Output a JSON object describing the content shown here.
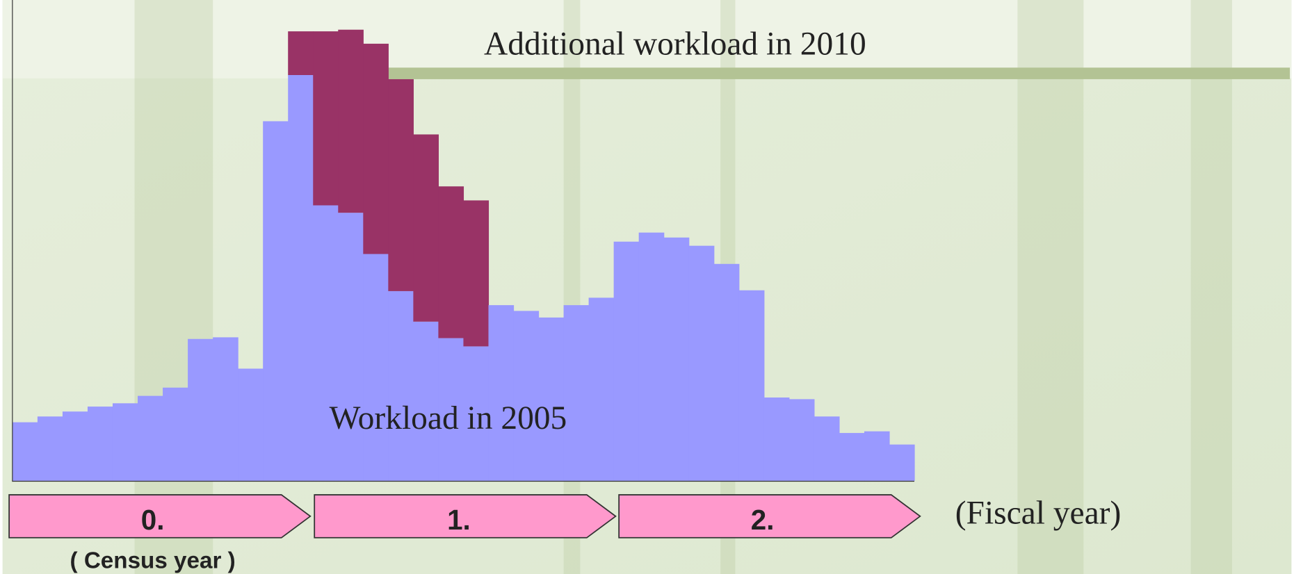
{
  "chart_data": {
    "type": "stacked_bar",
    "series": [
      {
        "name": "Workload in 2005",
        "color": "#9999ff",
        "values": [
          71,
          78,
          84,
          90,
          94,
          103,
          113,
          172,
          174,
          136,
          436,
          492,
          334,
          325,
          275,
          230,
          193,
          173,
          163,
          213,
          206,
          198,
          213,
          222,
          290,
          301,
          295,
          285,
          263,
          231,
          101,
          99,
          78,
          58,
          60,
          44
        ]
      },
      {
        "name": "Additional workload in 2010",
        "color": "#993366",
        "values": [
          0,
          0,
          0,
          0,
          0,
          0,
          0,
          0,
          0,
          0,
          0,
          53,
          211,
          222,
          255,
          257,
          227,
          184,
          177,
          0,
          0,
          0,
          0,
          0,
          0,
          0,
          0,
          0,
          0,
          0,
          0,
          0,
          0,
          0,
          0,
          0
        ]
      }
    ],
    "timeline": [
      "0.",
      "1.",
      "2."
    ],
    "timeline_note": "( Census year )",
    "x_label": "(Fiscal year)"
  }
}
